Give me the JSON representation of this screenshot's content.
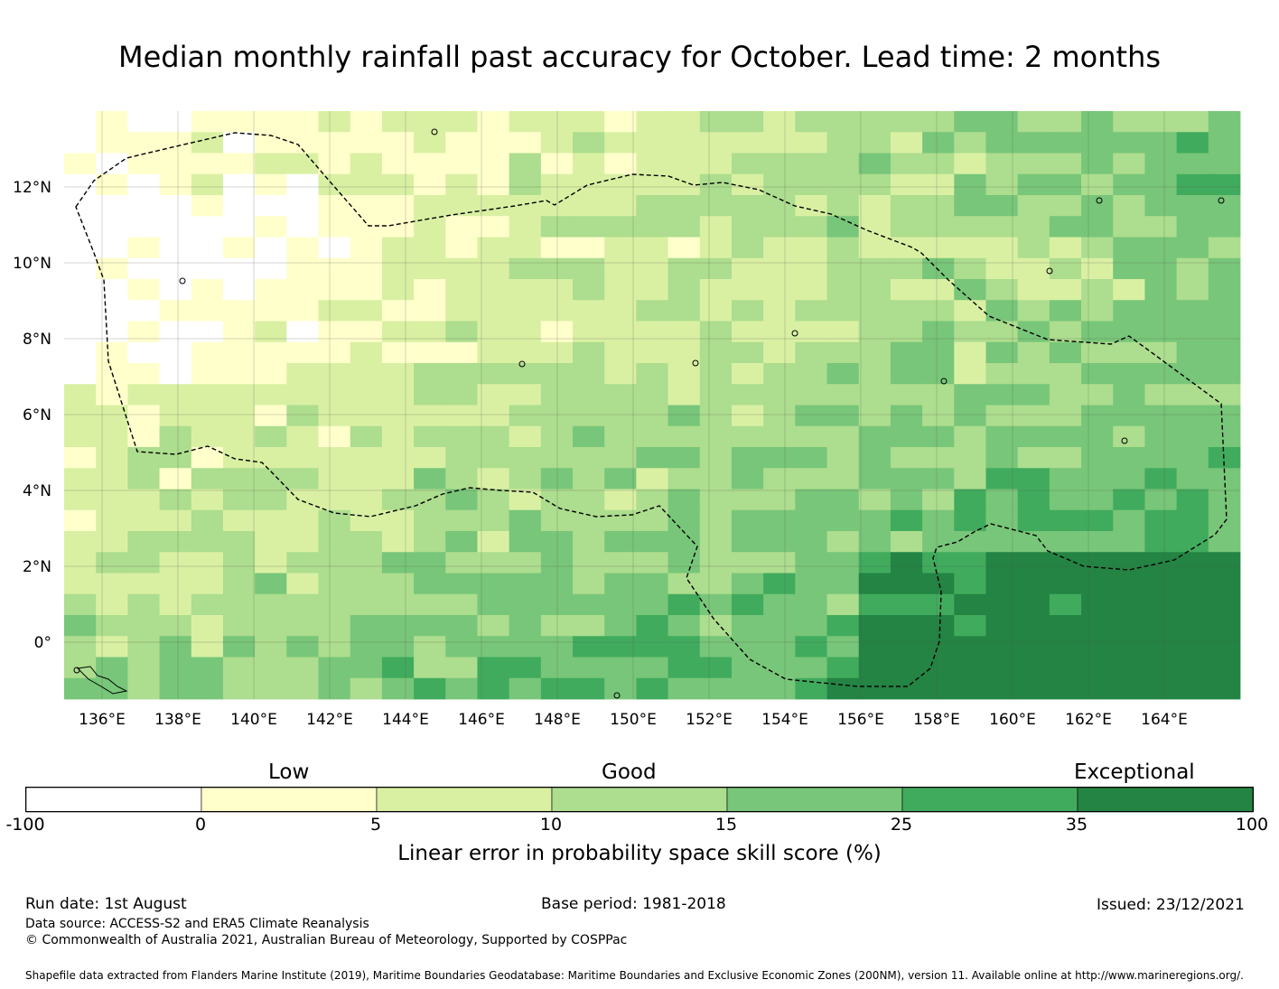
{
  "title": "Median monthly rainfall past accuracy for October. Lead time: 2 months",
  "map": {
    "lon_ticks": [
      "136°E",
      "138°E",
      "140°E",
      "142°E",
      "144°E",
      "146°E",
      "148°E",
      "150°E",
      "152°E",
      "154°E",
      "156°E",
      "158°E",
      "160°E",
      "162°E",
      "164°E"
    ],
    "lat_ticks": [
      "12°N",
      "10°N",
      "8°N",
      "6°N",
      "4°N",
      "2°N",
      "0°"
    ],
    "lon_range": [
      135,
      166
    ],
    "lat_range": [
      -1.5,
      14
    ]
  },
  "legend": {
    "category_labels": [
      "Low",
      "Good",
      "Exceptional"
    ],
    "boundaries": [
      "-100",
      "0",
      "5",
      "10",
      "15",
      "25",
      "35",
      "100"
    ],
    "colors": [
      "#ffffff",
      "#ffffcc",
      "#d9f0a3",
      "#addd8e",
      "#78c679",
      "#41ab5d",
      "#238443"
    ],
    "title": "Linear error in probability space skill score (%)"
  },
  "footer": {
    "run_date": "Run date: 1st August",
    "base_period": "Base period: 1981-2018",
    "issued": "Issued: 23/12/2021",
    "data_source": "Data source: ACCESS-S2 and ERA5 Climate Reanalysis",
    "copyright": "© Commonwealth of Australia 2021, Australian Bureau of Meteorology, Supported by COSPPac",
    "shapefile": "Shapefile data extracted from Flanders Marine Institute (2019), Maritime Boundaries Geodatabase: Maritime Boundaries and Exclusive Economic Zones (200NM), version 11. Available online at http://www.marineregions.org/."
  }
}
